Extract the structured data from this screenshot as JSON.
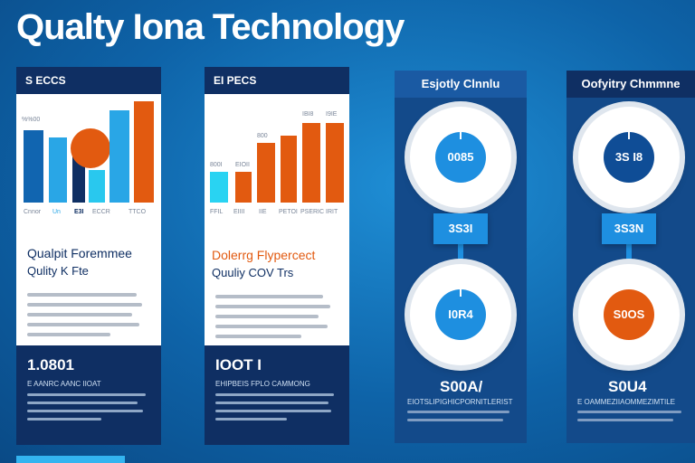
{
  "title": "Qualty  Iona Technology",
  "colors": {
    "navy": "#0f2f63",
    "blue": "#0f5fa6",
    "lightblue": "#33b4f0",
    "orange": "#e25a10",
    "cyan": "#29c8ee"
  },
  "panel1": {
    "header": "S ECCS",
    "chart_labels": {
      "y_label": "%%00",
      "x_labels": [
        "Cnnor",
        "Un",
        "E3I",
        "ECCR",
        "TTCO"
      ]
    },
    "subtitle1": "Qualpit Foremmee",
    "subtitle2": "Qulity K Fte",
    "footer_number": "1.0801",
    "footer_caption": "E AANRC AANC IIOAT"
  },
  "panel2": {
    "header": "EI PECS",
    "chart_labels": {
      "value_labels": [
        "800I",
        "EIOII",
        "800",
        "IBI8",
        "I9IE"
      ],
      "x_labels": [
        "FFIL",
        "EIIII",
        "IIE",
        "PETOI",
        "PSERIC",
        "IRIT"
      ]
    },
    "subtitle1": "Dolerrg Flypercect",
    "subtitle2": "Quuliy COV Trs",
    "footer_number": "IOOT I",
    "footer_caption": "EHIPBEIS FPLO CAMMONG"
  },
  "panel3": {
    "header": "Esjotly Clnnlu",
    "circle_top": "0085",
    "badge": "3S3I",
    "circle_bottom": "I0R4",
    "stat": "S00A/",
    "caption": "EIOTSLIPIGHICPORNITLERIST"
  },
  "panel4": {
    "header": "Oofyitry Chmmne",
    "circle_top": "3S I8",
    "badge": "3S3N",
    "circle_bottom": "S0OS",
    "stat": "S0U4",
    "caption": "E OAMMEZIIAOMMEZIMTILE"
  }
}
